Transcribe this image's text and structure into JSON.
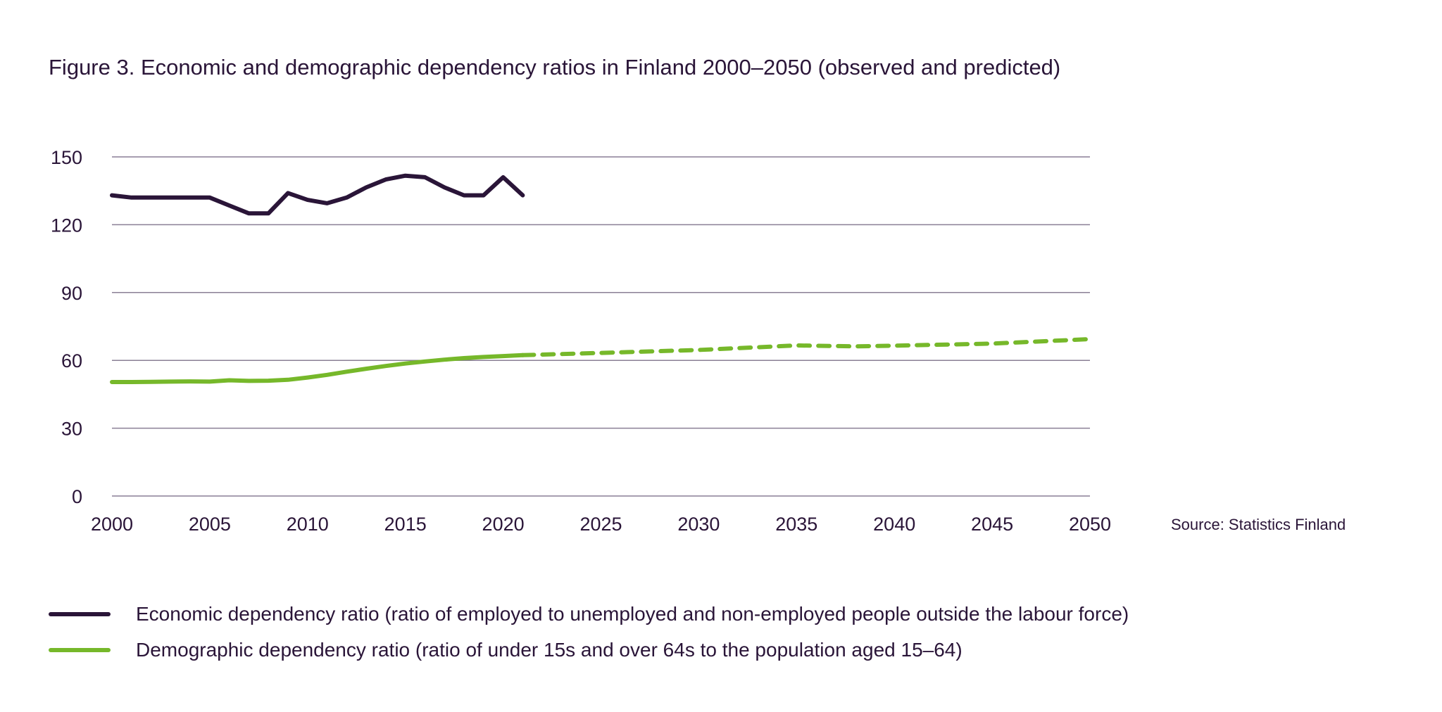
{
  "title": "Figure 3. Economic and demographic dependency ratios in Finland 2000–2050 (observed and predicted)",
  "source": "Source: Statistics Finland",
  "chart_data": {
    "type": "line",
    "title": "Figure 3. Economic and demographic dependency ratios in Finland 2000–2050 (observed and predicted)",
    "xlim": [
      2000,
      2050
    ],
    "ylim": [
      0,
      150
    ],
    "x_ticks": [
      "2000",
      "2005",
      "2010",
      "2015",
      "2020",
      "2025",
      "2030",
      "2035",
      "2040",
      "2045",
      "2050"
    ],
    "y_ticks": [
      "0",
      "30",
      "60",
      "90",
      "120",
      "150"
    ],
    "grid": "horizontal",
    "legend_placement": "bottom",
    "series": [
      {
        "name": "Economic dependency ratio (ratio of employed to unemployed and non-employed people outside the labour force)",
        "color": "#2a1538",
        "style": "solid",
        "x": [
          2000,
          2001,
          2002,
          2003,
          2004,
          2005,
          2006,
          2007,
          2008,
          2009,
          2010,
          2011,
          2012,
          2013,
          2014,
          2015,
          2016,
          2017,
          2018,
          2019,
          2020,
          2021
        ],
        "values": [
          133,
          132,
          132,
          132,
          132,
          132,
          128.5,
          125,
          125,
          134,
          131,
          129.5,
          132,
          136.5,
          140,
          141.7,
          141,
          136.5,
          133,
          133,
          141,
          133
        ]
      },
      {
        "name": "Demographic dependency ratio (ratio of under 15s and over 64s to the population aged 15–64)",
        "color": "#76b82a",
        "style": "solid",
        "x": [
          2000,
          2001,
          2002,
          2003,
          2004,
          2005,
          2006,
          2007,
          2008,
          2009,
          2010,
          2011,
          2012,
          2013,
          2014,
          2015,
          2016,
          2017,
          2018,
          2019,
          2020,
          2021
        ],
        "values": [
          50.4,
          50.4,
          50.5,
          50.6,
          50.7,
          50.6,
          51.2,
          50.9,
          51,
          51.4,
          52.4,
          53.6,
          55,
          56.3,
          57.5,
          58.6,
          59.5,
          60.3,
          61,
          61.5,
          61.9,
          62.3
        ]
      },
      {
        "name": "Demographic dependency ratio (predicted)",
        "color": "#76b82a",
        "style": "dashed",
        "x": [
          2021,
          2025,
          2030,
          2035,
          2038,
          2040,
          2045,
          2050
        ],
        "values": [
          62.3,
          63.3,
          64.6,
          66.6,
          66.2,
          66.5,
          67.4,
          69.4
        ]
      }
    ]
  },
  "legend": [
    {
      "label": "Economic dependency ratio (ratio of employed to unemployed and non-employed people outside the labour force)",
      "color": "#2a1538"
    },
    {
      "label": "Demographic dependency ratio (ratio of under 15s and over 64s to the population aged 15–64)",
      "color": "#76b82a"
    }
  ]
}
